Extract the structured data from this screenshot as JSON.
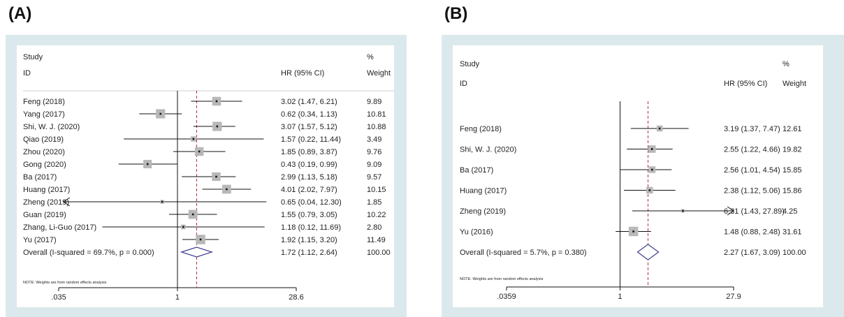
{
  "panels": [
    "(A)",
    "(B)"
  ],
  "chart_data": [
    {
      "type": "forest",
      "panel": "(A)",
      "header": {
        "study": "Study",
        "id": "ID",
        "hr": "HR (95% CI)",
        "pct": "%",
        "weight": "Weight"
      },
      "x_scale": "log",
      "x_ticks": [
        ".035",
        "1",
        "28.6"
      ],
      "xlim": [
        0.035,
        28.6
      ],
      "null_line": 1,
      "studies": [
        {
          "label": "Feng (2018)",
          "hr": 3.02,
          "lo": 1.47,
          "hi": 6.21,
          "ci_text": "3.02 (1.47, 6.21)",
          "weight_text": "9.89",
          "weight": 9.89
        },
        {
          "label": "Yang (2017)",
          "hr": 0.62,
          "lo": 0.34,
          "hi": 1.13,
          "ci_text": "0.62 (0.34, 1.13)",
          "weight_text": "10.81",
          "weight": 10.81
        },
        {
          "label": "Shi, W. J. (2020)",
          "hr": 3.07,
          "lo": 1.57,
          "hi": 5.12,
          "ci_text": "3.07 (1.57, 5.12)",
          "weight_text": "10.88",
          "weight": 10.88
        },
        {
          "label": "Qiao (2019)",
          "hr": 1.57,
          "lo": 0.22,
          "hi": 11.44,
          "ci_text": "1.57 (0.22, 11.44)",
          "weight_text": "3.49",
          "weight": 3.49
        },
        {
          "label": "Zhou (2020)",
          "hr": 1.85,
          "lo": 0.89,
          "hi": 3.87,
          "ci_text": "1.85 (0.89, 3.87)",
          "weight_text": "9.76",
          "weight": 9.76
        },
        {
          "label": "Gong (2020)",
          "hr": 0.43,
          "lo": 0.19,
          "hi": 0.99,
          "ci_text": "0.43 (0.19, 0.99)",
          "weight_text": "9.09",
          "weight": 9.09
        },
        {
          "label": "Ba (2017)",
          "hr": 2.99,
          "lo": 1.13,
          "hi": 5.18,
          "ci_text": "2.99 (1.13, 5.18)",
          "weight_text": "9.57",
          "weight": 9.57
        },
        {
          "label": "Huang (2017)",
          "hr": 4.01,
          "lo": 2.02,
          "hi": 7.97,
          "ci_text": "4.01 (2.02, 7.97)",
          "weight_text": "10.15",
          "weight": 10.15
        },
        {
          "label": "Zheng (2019)",
          "hr": 0.65,
          "lo": 0.04,
          "hi": 12.3,
          "ci_text": "0.65 (0.04, 12.30)",
          "weight_text": "1.85",
          "weight": 1.85,
          "arrow_left": true
        },
        {
          "label": "Guan (2019)",
          "hr": 1.55,
          "lo": 0.79,
          "hi": 3.05,
          "ci_text": "1.55 (0.79, 3.05)",
          "weight_text": "10.22",
          "weight": 10.22
        },
        {
          "label": "Zhang, Li-Guo (2017)",
          "hr": 1.18,
          "lo": 0.12,
          "hi": 11.69,
          "ci_text": "1.18 (0.12, 11.69)",
          "weight_text": "2.80",
          "weight": 2.8
        },
        {
          "label": "Yu (2017)",
          "hr": 1.92,
          "lo": 1.15,
          "hi": 3.2,
          "ci_text": "1.92 (1.15, 3.20)",
          "weight_text": "11.49",
          "weight": 11.49
        }
      ],
      "overall": {
        "label": "Overall  (I-squared = 69.7%, p = 0.000)",
        "hr": 1.72,
        "lo": 1.12,
        "hi": 2.64,
        "ci_text": "1.72 (1.12, 2.64)",
        "weight_text": "100.00"
      },
      "note": "NOTE: Weights are from random effects analysis"
    },
    {
      "type": "forest",
      "panel": "(B)",
      "header": {
        "study": "Study",
        "id": "ID",
        "hr": "HR (95% CI)",
        "pct": "%",
        "weight": "Weight"
      },
      "x_scale": "log",
      "x_ticks": [
        ".0359",
        "1",
        "27.9"
      ],
      "xlim": [
        0.0359,
        27.9
      ],
      "null_line": 1,
      "studies": [
        {
          "label": "Feng (2018)",
          "hr": 3.19,
          "lo": 1.37,
          "hi": 7.47,
          "ci_text": "3.19 (1.37, 7.47)",
          "weight_text": "12.61",
          "weight": 12.61
        },
        {
          "label": "Shi, W. J. (2020)",
          "hr": 2.55,
          "lo": 1.22,
          "hi": 4.66,
          "ci_text": "2.55 (1.22, 4.66)",
          "weight_text": "19.82",
          "weight": 19.82
        },
        {
          "label": "Ba (2017)",
          "hr": 2.56,
          "lo": 1.01,
          "hi": 4.54,
          "ci_text": "2.56 (1.01, 4.54)",
          "weight_text": "15.85",
          "weight": 15.85
        },
        {
          "label": "Huang (2017)",
          "hr": 2.38,
          "lo": 1.12,
          "hi": 5.06,
          "ci_text": "2.38 (1.12, 5.06)",
          "weight_text": "15.86",
          "weight": 15.86
        },
        {
          "label": "Zheng (2019)",
          "hr": 6.31,
          "lo": 1.43,
          "hi": 27.89,
          "ci_text": "6.31 (1.43, 27.89)",
          "weight_text": "4.25",
          "weight": 4.25,
          "arrow_right": true
        },
        {
          "label": "Yu  (2016)",
          "hr": 1.48,
          "lo": 0.88,
          "hi": 2.48,
          "ci_text": "1.48 (0.88, 2.48)",
          "weight_text": "31.61",
          "weight": 31.61
        }
      ],
      "overall": {
        "label": "Overall  (I-squared = 5.7%, p = 0.380)",
        "hr": 2.27,
        "lo": 1.67,
        "hi": 3.09,
        "ci_text": "2.27 (1.67, 3.09)",
        "weight_text": "100.00"
      },
      "note": "NOTE: Weights are from random effects analysis"
    }
  ],
  "colors": {
    "frame": "#dce9ec",
    "box": "#b8b8b8",
    "line": "#111111",
    "effect_line": "#b03040",
    "diamond": "#3f3f8f"
  }
}
